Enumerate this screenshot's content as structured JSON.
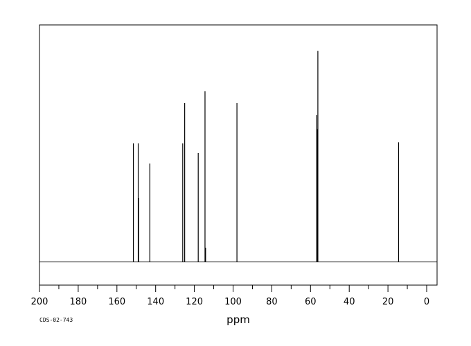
{
  "chart_data": {
    "type": "line",
    "spectrum_kind": "stick",
    "xlabel": "ppm",
    "xlim": [
      200,
      -5
    ],
    "x_reversed": true,
    "ylim": [
      0,
      100
    ],
    "grid": false,
    "legend": "none",
    "x_ticks": [
      200,
      180,
      160,
      140,
      120,
      100,
      80,
      60,
      40,
      20,
      0
    ],
    "x_minor_tick_step": 10,
    "footer_code": "CDS-02-743",
    "line_color": "#000000",
    "peaks": [
      {
        "ppm": 151.5,
        "intensity": 50.0
      },
      {
        "ppm": 149.0,
        "intensity": 50.0
      },
      {
        "ppm": 148.8,
        "intensity": 27.0
      },
      {
        "ppm": 143.0,
        "intensity": 41.5
      },
      {
        "ppm": 126.0,
        "intensity": 50.0
      },
      {
        "ppm": 125.0,
        "intensity": 67.0
      },
      {
        "ppm": 118.0,
        "intensity": 46.0
      },
      {
        "ppm": 114.5,
        "intensity": 72.0
      },
      {
        "ppm": 114.2,
        "intensity": 6.0
      },
      {
        "ppm": 98.0,
        "intensity": 67.0
      },
      {
        "ppm": 56.8,
        "intensity": 62.0
      },
      {
        "ppm": 56.5,
        "intensity": 56.0
      },
      {
        "ppm": 56.2,
        "intensity": 89.0
      },
      {
        "ppm": 14.5,
        "intensity": 50.5
      }
    ]
  }
}
